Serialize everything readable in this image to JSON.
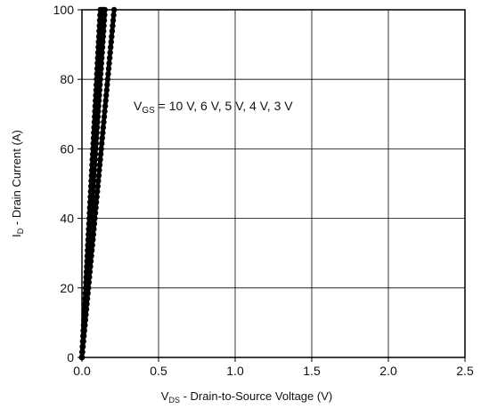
{
  "chart_data": {
    "type": "line",
    "x_axis": {
      "label_main": "V",
      "label_sub": "DS",
      "label_rest": " - Drain-to-Source Voltage (V)",
      "range": [
        0,
        2.5
      ],
      "ticks": [
        0.0,
        0.5,
        1.0,
        1.5,
        2.0,
        2.5
      ],
      "tick_labels": [
        "0.0",
        "0.5",
        "1.0",
        "1.5",
        "2.0",
        "2.5"
      ]
    },
    "y_axis": {
      "label_main": "I",
      "label_sub": "D",
      "label_rest": " - Drain Current (A)",
      "range": [
        0,
        100
      ],
      "ticks": [
        0,
        20,
        40,
        60,
        80,
        100
      ],
      "tick_labels": [
        "0",
        "20",
        "40",
        "60",
        "80",
        "100"
      ]
    },
    "grid": true,
    "annotation": {
      "main": "V",
      "sub": "GS",
      "rest": " = 10 V, 6 V, 5 V, 4 V, 3 V"
    },
    "series": [
      {
        "x": [
          0,
          0.12
        ],
        "y": [
          0,
          100
        ]
      },
      {
        "x": [
          0,
          0.13
        ],
        "y": [
          0,
          100
        ]
      },
      {
        "x": [
          0,
          0.14
        ],
        "y": [
          0,
          100
        ]
      },
      {
        "x": [
          0,
          0.15
        ],
        "y": [
          0,
          100
        ]
      },
      {
        "x": [
          0,
          0.21
        ],
        "y": [
          0,
          100
        ]
      }
    ],
    "line_color": "#000000"
  }
}
